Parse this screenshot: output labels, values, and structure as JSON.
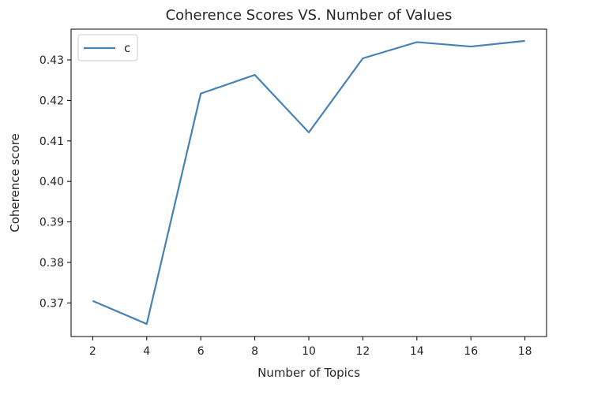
{
  "chart_data": {
    "type": "line",
    "title": "Coherence Scores VS. Number of Values",
    "xlabel": "Number of Topics",
    "ylabel": "Coherence score",
    "x": [
      2,
      4,
      6,
      8,
      10,
      12,
      14,
      16,
      18
    ],
    "series": [
      {
        "name": "c",
        "color": "#4682b4",
        "values": [
          0.3705,
          0.3648,
          0.4217,
          0.4263,
          0.4121,
          0.4304,
          0.4344,
          0.4333,
          0.4347
        ]
      }
    ],
    "xticks": [
      "2",
      "4",
      "6",
      "8",
      "10",
      "12",
      "14",
      "16",
      "18"
    ],
    "yticks": [
      "0.37",
      "0.38",
      "0.39",
      "0.40",
      "0.41",
      "0.42",
      "0.43"
    ],
    "xlim": [
      1.2,
      18.8
    ],
    "ylim": [
      0.3617,
      0.4376
    ],
    "grid": false,
    "legend_position": "upper-left"
  }
}
